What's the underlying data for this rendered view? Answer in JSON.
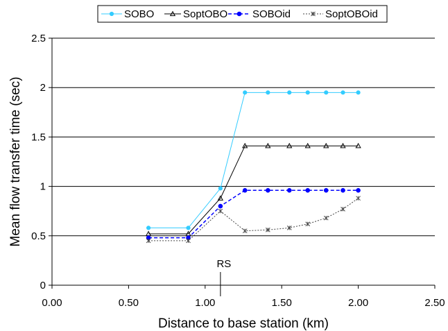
{
  "chart_data": {
    "type": "line",
    "title": "",
    "xlabel": "Distance to base station (km)",
    "ylabel": "Mean flow transfer time (sec)",
    "xlim": [
      0,
      2.5
    ],
    "ylim": [
      0,
      2.5
    ],
    "x_ticks": [
      "0.00",
      "0.50",
      "1.00",
      "1.50",
      "2.00",
      "2.50"
    ],
    "y_ticks": [
      "0",
      "0.5",
      "1",
      "1.5",
      "2",
      "2.5"
    ],
    "grid": "horizontal",
    "legend_position": "top",
    "annotation": {
      "label": "RS",
      "x": 1.1
    },
    "series": [
      {
        "name": "SOBO",
        "color": "#33ccff",
        "line_style": "solid",
        "marker": "circle",
        "x": [
          0.63,
          0.89,
          1.1,
          1.26,
          1.41,
          1.55,
          1.67,
          1.79,
          1.9,
          2.0
        ],
        "y": [
          0.58,
          0.58,
          0.98,
          1.95,
          1.95,
          1.95,
          1.95,
          1.95,
          1.95,
          1.95
        ]
      },
      {
        "name": "SoptOBO",
        "color": "#000000",
        "line_style": "solid",
        "marker": "triangle",
        "x": [
          0.63,
          0.89,
          1.1,
          1.26,
          1.41,
          1.55,
          1.67,
          1.79,
          1.9,
          2.0
        ],
        "y": [
          0.52,
          0.52,
          0.88,
          1.41,
          1.41,
          1.41,
          1.41,
          1.41,
          1.41,
          1.41
        ]
      },
      {
        "name": "SOBOid",
        "color": "#0000ff",
        "line_style": "dashed",
        "marker": "dot",
        "x": [
          0.63,
          0.89,
          1.1,
          1.26,
          1.41,
          1.55,
          1.67,
          1.79,
          1.9,
          2.0
        ],
        "y": [
          0.48,
          0.48,
          0.8,
          0.96,
          0.96,
          0.96,
          0.96,
          0.96,
          0.96,
          0.96
        ]
      },
      {
        "name": "SoptOBOid",
        "color": "#444444",
        "line_style": "dotted",
        "marker": "star",
        "x": [
          0.63,
          0.89,
          1.1,
          1.26,
          1.41,
          1.55,
          1.67,
          1.79,
          1.9,
          2.0
        ],
        "y": [
          0.45,
          0.45,
          0.75,
          0.55,
          0.56,
          0.58,
          0.62,
          0.68,
          0.77,
          0.88
        ]
      }
    ]
  }
}
